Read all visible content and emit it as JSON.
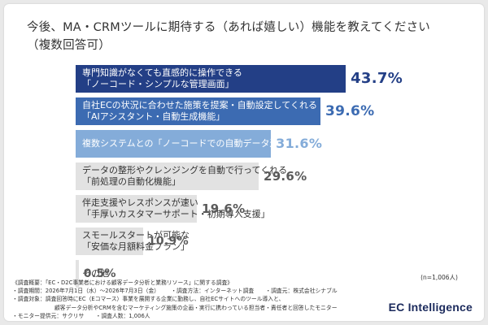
{
  "title": {
    "line1": "今後、MA・CRMツールに期待する（あれば嬉しい）機能を教えてください",
    "line2": "（複数回答可）"
  },
  "chart_data": {
    "type": "bar",
    "orientation": "horizontal",
    "categories": [
      [
        "専門知識がなくても直感的に操作できる",
        "「ノーコード・シンプルな管理画面」"
      ],
      [
        "自社ECの状況に合わせた施策を提案・自動設定してくれる",
        "「AIアシスタント・自動生成機能」"
      ],
      [
        "複数システムとの「ノーコードでの自動データ連携機能」"
      ],
      [
        "データの整形やクレンジングを自動で行ってくれる",
        "「前処理の自動化機能」"
      ],
      [
        "伴走支援やレスポンスが速い",
        "「手厚いカスタマーサポート・初期導入支援」"
      ],
      [
        "スモールスタートが可能な",
        "「安価な月額料金プラン」"
      ],
      [
        "その他"
      ]
    ],
    "values": [
      43.7,
      39.6,
      31.6,
      29.6,
      19.6,
      10.9,
      0.5
    ],
    "value_labels": [
      "43.7%",
      "39.6%",
      "31.6%",
      "29.6%",
      "19.6%",
      "10.9%",
      "0.5%"
    ],
    "bar_colors": [
      "#233f86",
      "#3c6bb2",
      "#84acd9",
      "#e2e2e2",
      "#e2e2e2",
      "#e2e2e2",
      "#e2e2e2"
    ],
    "label_colors": [
      "#ffffff",
      "#ffffff",
      "#ffffff",
      "#333333",
      "#333333",
      "#333333",
      "#333333"
    ],
    "value_colors": [
      "#233f86",
      "#3c6bb2",
      "#84acd9",
      "#5a5a5a",
      "#5a5a5a",
      "#5a5a5a",
      "#5a5a5a"
    ],
    "xlim": [
      0,
      50
    ]
  },
  "n_note": "(n=1,006人)",
  "notes": {
    "survey_title": "《調査概要：「EC・D2C事業者における顧客データ分析と業務リソース」に関する調査》",
    "period": "・調査期間：2026年7月1日（水）〜2026年7月3日（金）",
    "method": "・調査方法：インターネット調査",
    "source": "・調査元：株式会社シナブル",
    "target_1": "・調査対象：調査回答時にEC（Eコマース）事業を展開する企業に勤務し、自社ECサイトへのツール導入と、",
    "target_2": "顧客データ分析やCRMを含むマーケティング施策の企画・実行に携わっている担当者・責任者と回答したモニター",
    "monitor": "・モニター提供元：サクリサ",
    "count": "・調査人数：1,006人"
  },
  "logo": "EC Intelligence"
}
